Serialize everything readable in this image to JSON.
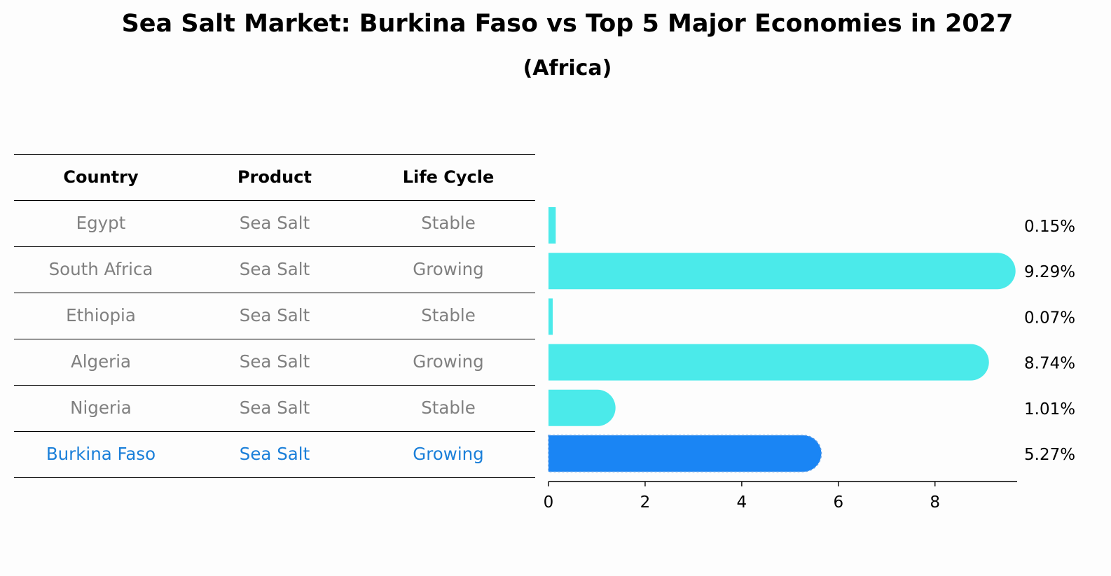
{
  "title": "Sea Salt Market: Burkina Faso vs Top 5 Major Economies in 2027",
  "subtitle": "(Africa)",
  "table": {
    "headers": [
      "Country",
      "Product",
      "Life Cycle"
    ],
    "rows": [
      {
        "country": "Egypt",
        "product": "Sea Salt",
        "life_cycle": "Stable",
        "highlight": false
      },
      {
        "country": "South Africa",
        "product": "Sea Salt",
        "life_cycle": "Growing",
        "highlight": false
      },
      {
        "country": "Ethiopia",
        "product": "Sea Salt",
        "life_cycle": "Stable",
        "highlight": false
      },
      {
        "country": "Algeria",
        "product": "Sea Salt",
        "life_cycle": "Growing",
        "highlight": false
      },
      {
        "country": "Nigeria",
        "product": "Sea Salt",
        "life_cycle": "Stable",
        "highlight": false
      },
      {
        "country": "Burkina Faso",
        "product": "Sea Salt",
        "life_cycle": "Growing",
        "highlight": true
      }
    ]
  },
  "chart_data": {
    "type": "bar",
    "orientation": "horizontal",
    "categories": [
      "Egypt",
      "South Africa",
      "Ethiopia",
      "Algeria",
      "Nigeria",
      "Burkina Faso"
    ],
    "values": [
      0.15,
      9.29,
      0.07,
      8.74,
      1.01,
      5.27
    ],
    "value_labels": [
      "0.15%",
      "9.29%",
      "0.07%",
      "8.74%",
      "1.01%",
      "5.27%"
    ],
    "xlim": [
      0,
      9.7
    ],
    "xticks": [
      0,
      2,
      4,
      6,
      8
    ],
    "xlabel": "",
    "ylabel": "",
    "highlight_category": "Burkina Faso",
    "colors": {
      "default": "#4beaea",
      "highlight": "#1a85f4"
    }
  }
}
